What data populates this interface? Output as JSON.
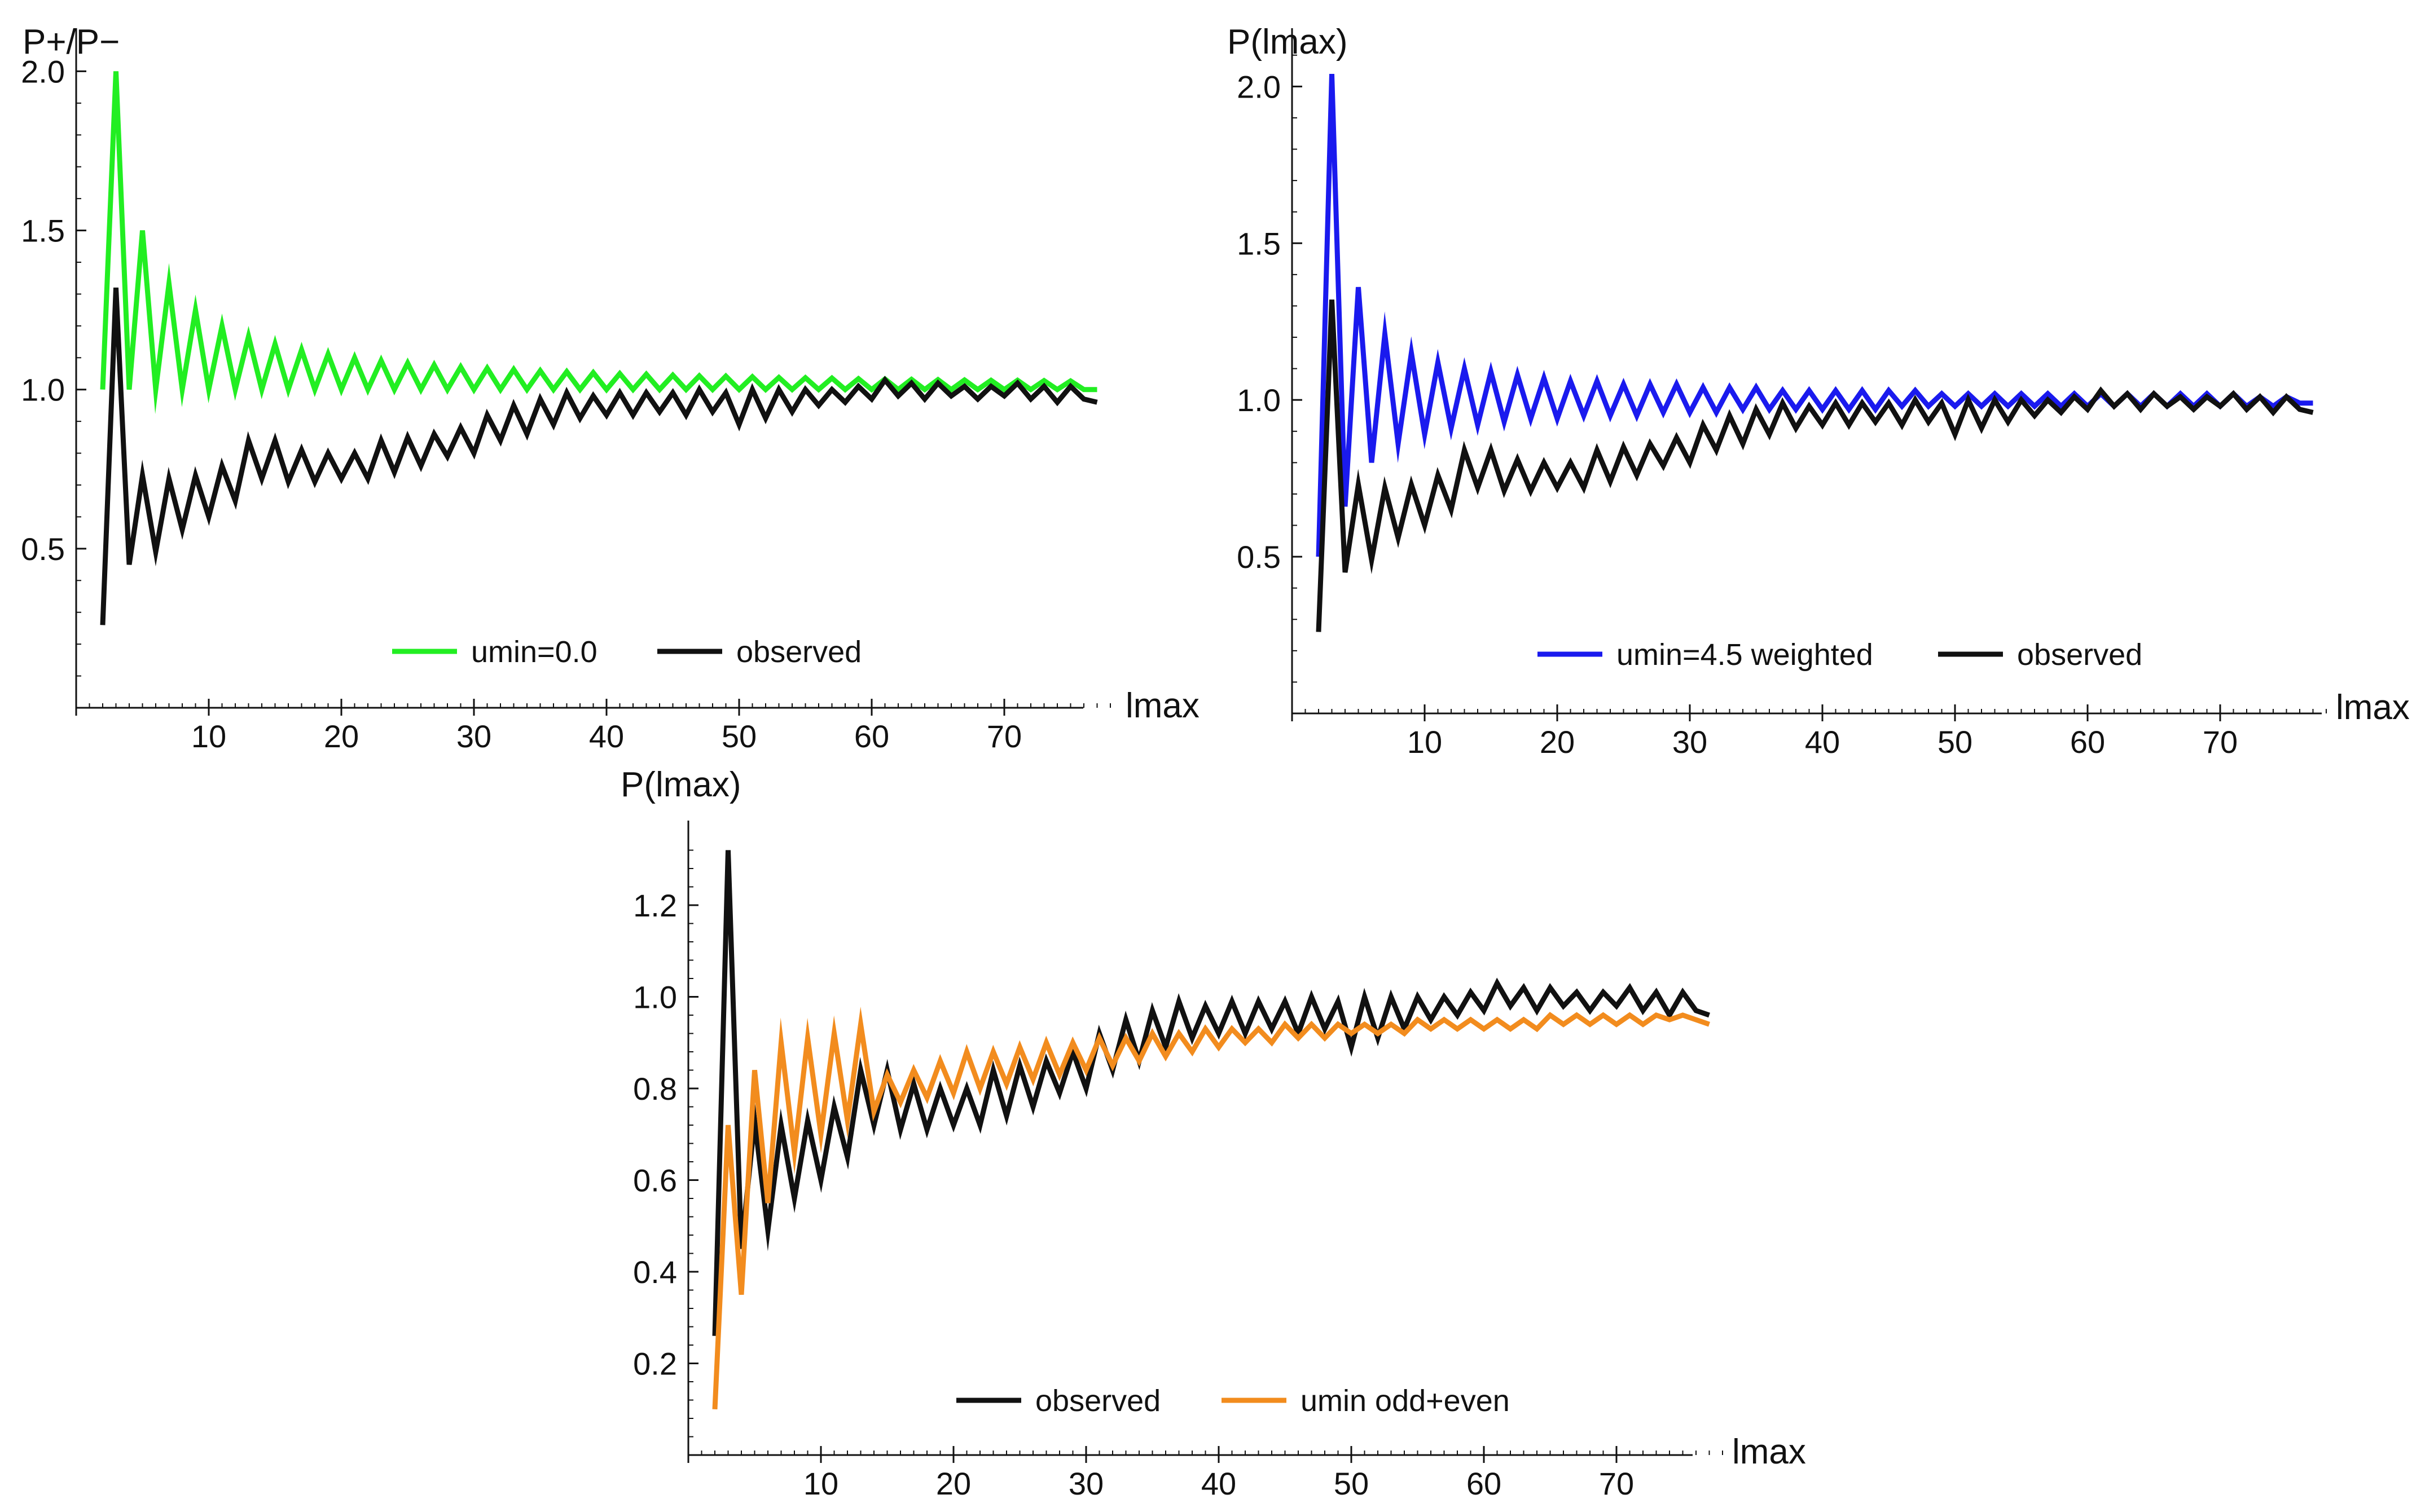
{
  "chart_data": [
    {
      "type": "line",
      "ylabel": "P+/P−",
      "xlabel": "lmax",
      "xlim": [
        0,
        78
      ],
      "ylim": [
        0,
        2.1
      ],
      "xticks": [
        10,
        20,
        30,
        40,
        50,
        60,
        70
      ],
      "yticks": [
        0.5,
        1.0,
        1.5,
        2.0
      ],
      "ytick_labels": [
        "0.5",
        "1.0",
        "1.5",
        "2.0"
      ],
      "legend_position": "bottom-right",
      "series": [
        {
          "name": "umin=0.0",
          "color": "#22ee22",
          "x": [
            2,
            3,
            4,
            5,
            6,
            7,
            8,
            9,
            10,
            11,
            12,
            13,
            14,
            15,
            16,
            17,
            18,
            19,
            20,
            21,
            22,
            23,
            24,
            25,
            26,
            27,
            28,
            29,
            30,
            31,
            32,
            33,
            34,
            35,
            36,
            37,
            38,
            39,
            40,
            41,
            42,
            43,
            44,
            45,
            46,
            47,
            48,
            49,
            50,
            51,
            52,
            53,
            54,
            55,
            56,
            57,
            58,
            59,
            60,
            61,
            62,
            63,
            64,
            65,
            66,
            67,
            68,
            69,
            70,
            71,
            72,
            73,
            74,
            75,
            76,
            77
          ],
          "y": [
            1.0,
            2.0,
            1.0,
            1.5,
            1.0,
            1.333,
            1.0,
            1.25,
            1.0,
            1.2,
            1.0,
            1.167,
            1.0,
            1.143,
            1.0,
            1.125,
            1.0,
            1.111,
            1.0,
            1.1,
            1.0,
            1.091,
            1.0,
            1.083,
            1.0,
            1.077,
            1.0,
            1.071,
            1.0,
            1.067,
            1.0,
            1.063,
            1.0,
            1.059,
            1.0,
            1.056,
            1.0,
            1.053,
            1.0,
            1.05,
            1.0,
            1.048,
            1.0,
            1.045,
            1.0,
            1.043,
            1.0,
            1.042,
            1.0,
            1.04,
            1.0,
            1.038,
            1.0,
            1.037,
            1.0,
            1.036,
            1.0,
            1.034,
            1.0,
            1.033,
            1.0,
            1.032,
            1.0,
            1.031,
            1.0,
            1.03,
            1.0,
            1.029,
            1.0,
            1.029,
            1.0,
            1.028,
            1.0,
            1.027,
            1.0,
            1.0
          ]
        },
        {
          "name": "observed",
          "color": "#111111",
          "x": [
            2,
            3,
            4,
            5,
            6,
            7,
            8,
            9,
            10,
            11,
            12,
            13,
            14,
            15,
            16,
            17,
            18,
            19,
            20,
            21,
            22,
            23,
            24,
            25,
            26,
            27,
            28,
            29,
            30,
            31,
            32,
            33,
            34,
            35,
            36,
            37,
            38,
            39,
            40,
            41,
            42,
            43,
            44,
            45,
            46,
            47,
            48,
            49,
            50,
            51,
            52,
            53,
            54,
            55,
            56,
            57,
            58,
            59,
            60,
            61,
            62,
            63,
            64,
            65,
            66,
            67,
            68,
            69,
            70,
            71,
            72,
            73,
            74,
            75,
            76,
            77
          ],
          "y": [
            0.26,
            1.32,
            0.45,
            0.73,
            0.49,
            0.72,
            0.56,
            0.73,
            0.6,
            0.76,
            0.65,
            0.84,
            0.72,
            0.84,
            0.71,
            0.81,
            0.71,
            0.8,
            0.72,
            0.8,
            0.72,
            0.84,
            0.74,
            0.85,
            0.76,
            0.86,
            0.79,
            0.88,
            0.8,
            0.92,
            0.84,
            0.95,
            0.86,
            0.97,
            0.89,
            0.99,
            0.91,
            0.98,
            0.92,
            0.99,
            0.92,
            0.99,
            0.93,
            0.99,
            0.92,
            1.0,
            0.93,
            0.99,
            0.89,
            1.0,
            0.91,
            1.0,
            0.93,
            1.0,
            0.95,
            1.0,
            0.96,
            1.01,
            0.97,
            1.03,
            0.98,
            1.02,
            0.97,
            1.02,
            0.98,
            1.01,
            0.97,
            1.01,
            0.98,
            1.02,
            0.97,
            1.01,
            0.96,
            1.01,
            0.97,
            0.96
          ]
        }
      ]
    },
    {
      "type": "line",
      "ylabel": "P(lmax)",
      "xlabel": "lmax",
      "xlim": [
        0,
        78
      ],
      "ylim": [
        0,
        2.15
      ],
      "xticks": [
        10,
        20,
        30,
        40,
        50,
        60,
        70
      ],
      "yticks": [
        0.5,
        1.0,
        1.5,
        2.0
      ],
      "ytick_labels": [
        "0.5",
        "1.0",
        "1.5",
        "2.0"
      ],
      "legend_position": "bottom-right",
      "series": [
        {
          "name": "umin=4.5 weighted",
          "color": "#1a1aee",
          "x": [
            2,
            3,
            4,
            5,
            6,
            7,
            8,
            9,
            10,
            11,
            12,
            13,
            14,
            15,
            16,
            17,
            18,
            19,
            20,
            21,
            22,
            23,
            24,
            25,
            26,
            27,
            28,
            29,
            30,
            31,
            32,
            33,
            34,
            35,
            36,
            37,
            38,
            39,
            40,
            41,
            42,
            43,
            44,
            45,
            46,
            47,
            48,
            49,
            50,
            51,
            52,
            53,
            54,
            55,
            56,
            57,
            58,
            59,
            60,
            61,
            62,
            63,
            64,
            65,
            66,
            67,
            68,
            69,
            70,
            71,
            72,
            73,
            74,
            75,
            76,
            77
          ],
          "y": [
            0.5,
            2.04,
            0.66,
            1.36,
            0.8,
            1.21,
            0.86,
            1.15,
            0.89,
            1.12,
            0.91,
            1.1,
            0.92,
            1.09,
            0.93,
            1.08,
            0.94,
            1.07,
            0.94,
            1.06,
            0.95,
            1.06,
            0.95,
            1.05,
            0.95,
            1.05,
            0.96,
            1.05,
            0.96,
            1.04,
            0.96,
            1.04,
            0.97,
            1.04,
            0.97,
            1.03,
            0.97,
            1.03,
            0.97,
            1.03,
            0.97,
            1.03,
            0.97,
            1.03,
            0.98,
            1.03,
            0.98,
            1.02,
            0.98,
            1.02,
            0.98,
            1.02,
            0.98,
            1.02,
            0.98,
            1.02,
            0.98,
            1.02,
            0.98,
            1.02,
            0.98,
            1.02,
            0.98,
            1.02,
            0.98,
            1.02,
            0.98,
            1.02,
            0.98,
            1.02,
            0.98,
            1.01,
            0.98,
            1.01,
            0.99,
            0.99
          ]
        },
        {
          "name": "observed",
          "color": "#111111",
          "x": [
            2,
            3,
            4,
            5,
            6,
            7,
            8,
            9,
            10,
            11,
            12,
            13,
            14,
            15,
            16,
            17,
            18,
            19,
            20,
            21,
            22,
            23,
            24,
            25,
            26,
            27,
            28,
            29,
            30,
            31,
            32,
            33,
            34,
            35,
            36,
            37,
            38,
            39,
            40,
            41,
            42,
            43,
            44,
            45,
            46,
            47,
            48,
            49,
            50,
            51,
            52,
            53,
            54,
            55,
            56,
            57,
            58,
            59,
            60,
            61,
            62,
            63,
            64,
            65,
            66,
            67,
            68,
            69,
            70,
            71,
            72,
            73,
            74,
            75,
            76,
            77
          ],
          "y": [
            0.26,
            1.32,
            0.45,
            0.73,
            0.49,
            0.72,
            0.56,
            0.73,
            0.6,
            0.76,
            0.65,
            0.84,
            0.72,
            0.84,
            0.71,
            0.81,
            0.71,
            0.8,
            0.72,
            0.8,
            0.72,
            0.84,
            0.74,
            0.85,
            0.76,
            0.86,
            0.79,
            0.88,
            0.8,
            0.92,
            0.84,
            0.95,
            0.86,
            0.97,
            0.89,
            0.99,
            0.91,
            0.98,
            0.92,
            0.99,
            0.92,
            0.99,
            0.93,
            0.99,
            0.92,
            1.0,
            0.93,
            0.99,
            0.89,
            1.0,
            0.91,
            1.0,
            0.93,
            1.0,
            0.95,
            1.0,
            0.96,
            1.01,
            0.97,
            1.03,
            0.98,
            1.02,
            0.97,
            1.02,
            0.98,
            1.01,
            0.97,
            1.01,
            0.98,
            1.02,
            0.97,
            1.01,
            0.96,
            1.01,
            0.97,
            0.96
          ]
        }
      ]
    },
    {
      "type": "line",
      "ylabel": "P(lmax)",
      "xlabel": "lmax",
      "xlim": [
        0,
        78
      ],
      "ylim": [
        0.0,
        1.36
      ],
      "xticks": [
        10,
        20,
        30,
        40,
        50,
        60,
        70
      ],
      "yticks": [
        0.2,
        0.4,
        0.6,
        0.8,
        1.0,
        1.2
      ],
      "ytick_labels": [
        "0.2",
        "0.4",
        "0.6",
        "0.8",
        "1.0",
        "1.2"
      ],
      "legend_position": "bottom-center",
      "series": [
        {
          "name": "observed",
          "color": "#111111",
          "x": [
            2,
            3,
            4,
            5,
            6,
            7,
            8,
            9,
            10,
            11,
            12,
            13,
            14,
            15,
            16,
            17,
            18,
            19,
            20,
            21,
            22,
            23,
            24,
            25,
            26,
            27,
            28,
            29,
            30,
            31,
            32,
            33,
            34,
            35,
            36,
            37,
            38,
            39,
            40,
            41,
            42,
            43,
            44,
            45,
            46,
            47,
            48,
            49,
            50,
            51,
            52,
            53,
            54,
            55,
            56,
            57,
            58,
            59,
            60,
            61,
            62,
            63,
            64,
            65,
            66,
            67,
            68,
            69,
            70,
            71,
            72,
            73,
            74,
            75,
            76,
            77
          ],
          "y": [
            0.26,
            1.32,
            0.45,
            0.73,
            0.49,
            0.72,
            0.56,
            0.73,
            0.6,
            0.76,
            0.65,
            0.84,
            0.72,
            0.84,
            0.71,
            0.81,
            0.71,
            0.8,
            0.72,
            0.8,
            0.72,
            0.84,
            0.74,
            0.85,
            0.76,
            0.86,
            0.79,
            0.88,
            0.8,
            0.92,
            0.84,
            0.95,
            0.86,
            0.97,
            0.89,
            0.99,
            0.91,
            0.98,
            0.92,
            0.99,
            0.92,
            0.99,
            0.93,
            0.99,
            0.92,
            1.0,
            0.93,
            0.99,
            0.89,
            1.0,
            0.91,
            1.0,
            0.93,
            1.0,
            0.95,
            1.0,
            0.96,
            1.01,
            0.97,
            1.03,
            0.98,
            1.02,
            0.97,
            1.02,
            0.98,
            1.01,
            0.97,
            1.01,
            0.98,
            1.02,
            0.97,
            1.01,
            0.96,
            1.01,
            0.97,
            0.96
          ]
        },
        {
          "name": "umin odd+even",
          "color": "#f28c1e",
          "x": [
            2,
            3,
            4,
            5,
            6,
            7,
            8,
            9,
            10,
            11,
            12,
            13,
            14,
            15,
            16,
            17,
            18,
            19,
            20,
            21,
            22,
            23,
            24,
            25,
            26,
            27,
            28,
            29,
            30,
            31,
            32,
            33,
            34,
            35,
            36,
            37,
            38,
            39,
            40,
            41,
            42,
            43,
            44,
            45,
            46,
            47,
            48,
            49,
            50,
            51,
            52,
            53,
            54,
            55,
            56,
            57,
            58,
            59,
            60,
            61,
            62,
            63,
            64,
            65,
            66,
            67,
            68,
            69,
            70,
            71,
            72,
            73,
            74,
            75,
            76,
            77
          ],
          "y": [
            0.1,
            0.72,
            0.35,
            0.84,
            0.55,
            0.9,
            0.66,
            0.91,
            0.7,
            0.92,
            0.73,
            0.94,
            0.75,
            0.83,
            0.77,
            0.84,
            0.78,
            0.86,
            0.79,
            0.88,
            0.8,
            0.88,
            0.81,
            0.89,
            0.82,
            0.9,
            0.83,
            0.9,
            0.84,
            0.91,
            0.85,
            0.91,
            0.86,
            0.92,
            0.87,
            0.92,
            0.88,
            0.93,
            0.89,
            0.93,
            0.9,
            0.93,
            0.9,
            0.94,
            0.91,
            0.94,
            0.91,
            0.94,
            0.92,
            0.94,
            0.92,
            0.94,
            0.92,
            0.95,
            0.93,
            0.95,
            0.93,
            0.95,
            0.93,
            0.95,
            0.93,
            0.95,
            0.93,
            0.96,
            0.94,
            0.96,
            0.94,
            0.96,
            0.94,
            0.96,
            0.94,
            0.96,
            0.95,
            0.96,
            0.95,
            0.94
          ]
        }
      ]
    }
  ]
}
